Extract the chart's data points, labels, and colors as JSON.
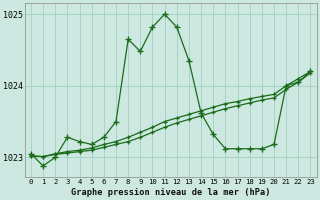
{
  "title": "Graphe pression niveau de la mer (hPa)",
  "background_color": "#cce8e0",
  "line_color": "#1a6b1a",
  "xlim": [
    -0.5,
    23.5
  ],
  "ylim": [
    1022.72,
    1025.15
  ],
  "yticks": [
    1023,
    1024,
    1025
  ],
  "xticks": [
    0,
    1,
    2,
    3,
    4,
    5,
    6,
    7,
    8,
    9,
    10,
    11,
    12,
    13,
    14,
    15,
    16,
    17,
    18,
    19,
    20,
    21,
    22,
    23
  ],
  "series1": [
    1023.05,
    1022.88,
    1023.0,
    1023.28,
    1023.22,
    1023.18,
    1023.28,
    1023.5,
    1024.65,
    1024.48,
    1024.82,
    1025.0,
    1024.82,
    1024.35,
    1023.62,
    1023.32,
    1023.12,
    1023.12,
    1023.12,
    1023.12,
    1023.18,
    1024.0,
    1024.05,
    1024.2
  ],
  "series2": [
    1023.02,
    1023.01,
    1023.05,
    1023.08,
    1023.1,
    1023.13,
    1023.18,
    1023.22,
    1023.28,
    1023.35,
    1023.42,
    1023.5,
    1023.55,
    1023.6,
    1023.65,
    1023.7,
    1023.75,
    1023.78,
    1023.82,
    1023.85,
    1023.88,
    1024.0,
    1024.1,
    1024.2
  ],
  "series3": [
    1023.02,
    1023.01,
    1023.04,
    1023.06,
    1023.08,
    1023.1,
    1023.14,
    1023.18,
    1023.22,
    1023.28,
    1023.35,
    1023.42,
    1023.48,
    1023.53,
    1023.58,
    1023.63,
    1023.68,
    1023.72,
    1023.76,
    1023.8,
    1023.83,
    1023.95,
    1024.05,
    1024.18
  ]
}
